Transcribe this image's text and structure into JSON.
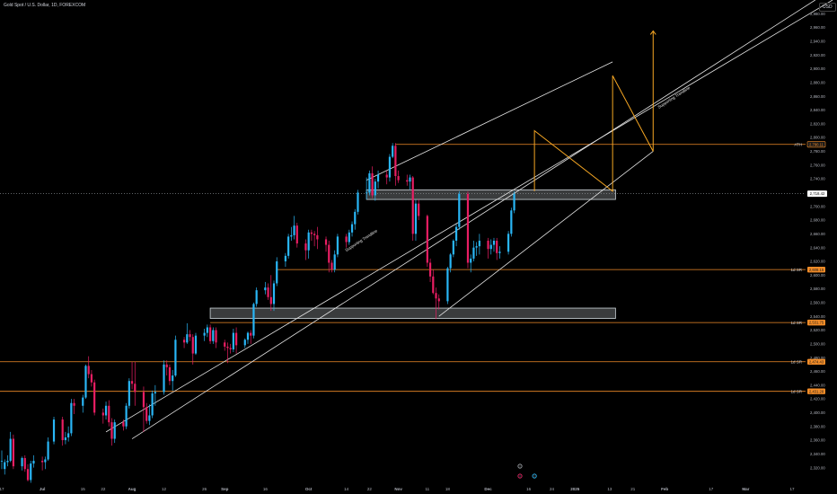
{
  "title": "Gold Spot / U.S. Dollar, 1D, FOREXCOM",
  "currency": "USD",
  "chart_data": {
    "type": "candlestick",
    "ylim": [
      2300,
      3000
    ],
    "y_ticks": [
      2320,
      2340,
      2360,
      2380,
      2400,
      2420,
      2440,
      2460,
      2480,
      2500,
      2520,
      2540,
      2560,
      2580,
      2600,
      2620,
      2640,
      2660,
      2680,
      2700,
      2720,
      2740,
      2760,
      2780,
      2800,
      2820,
      2840,
      2860,
      2880,
      2900,
      2920,
      2940,
      2960,
      2980
    ],
    "x_ticks": [
      {
        "label": "17",
        "date": "2024-06-17"
      },
      {
        "label": "Jul",
        "date": "2024-07-01"
      },
      {
        "label": "15",
        "date": "2024-07-15"
      },
      {
        "label": "22",
        "date": "2024-07-22"
      },
      {
        "label": "Aug",
        "date": "2024-08-01"
      },
      {
        "label": "12",
        "date": "2024-08-12"
      },
      {
        "label": "26",
        "date": "2024-08-26"
      },
      {
        "label": "Sep",
        "date": "2024-09-02"
      },
      {
        "label": "16",
        "date": "2024-09-16"
      },
      {
        "label": "Oct",
        "date": "2024-10-01"
      },
      {
        "label": "14",
        "date": "2024-10-14"
      },
      {
        "label": "22",
        "date": "2024-10-22"
      },
      {
        "label": "Nov",
        "date": "2024-11-01"
      },
      {
        "label": "11",
        "date": "2024-11-11"
      },
      {
        "label": "18",
        "date": "2024-11-18"
      },
      {
        "label": "Dec",
        "date": "2024-12-02"
      },
      {
        "label": "16",
        "date": "2024-12-16"
      },
      {
        "label": "24",
        "date": "2024-12-24"
      },
      {
        "label": "2025",
        "date": "2025-01-01"
      },
      {
        "label": "13",
        "date": "2025-01-13"
      },
      {
        "label": "21",
        "date": "2025-01-21"
      },
      {
        "label": "Feb",
        "date": "2025-02-01"
      },
      {
        "label": "17",
        "date": "2025-02-17"
      },
      {
        "label": "Mar",
        "date": "2025-03-01"
      },
      {
        "label": "17",
        "date": "2025-03-17"
      }
    ],
    "candles": [
      {
        "d": "2024-06-17",
        "o": 2330,
        "h": 2345,
        "l": 2318,
        "c": 2330
      },
      {
        "d": "2024-06-18",
        "o": 2318,
        "h": 2332,
        "l": 2310,
        "c": 2328
      },
      {
        "d": "2024-06-19",
        "o": 2328,
        "h": 2338,
        "l": 2322,
        "c": 2330
      },
      {
        "d": "2024-06-20",
        "o": 2330,
        "h": 2372,
        "l": 2328,
        "c": 2362
      },
      {
        "d": "2024-06-21",
        "o": 2362,
        "h": 2368,
        "l": 2318,
        "c": 2322
      },
      {
        "d": "2024-06-24",
        "o": 2322,
        "h": 2336,
        "l": 2316,
        "c": 2334
      },
      {
        "d": "2024-06-25",
        "o": 2334,
        "h": 2338,
        "l": 2314,
        "c": 2318
      },
      {
        "d": "2024-06-26",
        "o": 2318,
        "h": 2325,
        "l": 2300,
        "c": 2302
      },
      {
        "d": "2024-06-27",
        "o": 2302,
        "h": 2330,
        "l": 2298,
        "c": 2326
      },
      {
        "d": "2024-06-28",
        "o": 2326,
        "h": 2338,
        "l": 2320,
        "c": 2330
      },
      {
        "d": "2024-07-01",
        "o": 2330,
        "h": 2336,
        "l": 2316,
        "c": 2328
      },
      {
        "d": "2024-07-02",
        "o": 2328,
        "h": 2336,
        "l": 2318,
        "c": 2332
      },
      {
        "d": "2024-07-03",
        "o": 2332,
        "h": 2364,
        "l": 2330,
        "c": 2358
      },
      {
        "d": "2024-07-05",
        "o": 2358,
        "h": 2394,
        "l": 2354,
        "c": 2390
      },
      {
        "d": "2024-07-08",
        "o": 2390,
        "h": 2394,
        "l": 2352,
        "c": 2360
      },
      {
        "d": "2024-07-09",
        "o": 2360,
        "h": 2372,
        "l": 2354,
        "c": 2364
      },
      {
        "d": "2024-07-10",
        "o": 2364,
        "h": 2380,
        "l": 2358,
        "c": 2370
      },
      {
        "d": "2024-07-11",
        "o": 2370,
        "h": 2420,
        "l": 2366,
        "c": 2414
      },
      {
        "d": "2024-07-12",
        "o": 2414,
        "h": 2420,
        "l": 2398,
        "c": 2410
      },
      {
        "d": "2024-07-15",
        "o": 2410,
        "h": 2426,
        "l": 2400,
        "c": 2422
      },
      {
        "d": "2024-07-16",
        "o": 2422,
        "h": 2470,
        "l": 2420,
        "c": 2468
      },
      {
        "d": "2024-07-17",
        "o": 2468,
        "h": 2482,
        "l": 2450,
        "c": 2456
      },
      {
        "d": "2024-07-18",
        "o": 2456,
        "h": 2462,
        "l": 2438,
        "c": 2444
      },
      {
        "d": "2024-07-19",
        "o": 2444,
        "h": 2448,
        "l": 2396,
        "c": 2400
      },
      {
        "d": "2024-07-22",
        "o": 2400,
        "h": 2406,
        "l": 2384,
        "c": 2396
      },
      {
        "d": "2024-07-23",
        "o": 2396,
        "h": 2416,
        "l": 2390,
        "c": 2410
      },
      {
        "d": "2024-07-24",
        "o": 2410,
        "h": 2418,
        "l": 2380,
        "c": 2386
      },
      {
        "d": "2024-07-25",
        "o": 2386,
        "h": 2392,
        "l": 2352,
        "c": 2362
      },
      {
        "d": "2024-07-26",
        "o": 2362,
        "h": 2390,
        "l": 2356,
        "c": 2386
      },
      {
        "d": "2024-07-29",
        "o": 2386,
        "h": 2390,
        "l": 2374,
        "c": 2380
      },
      {
        "d": "2024-07-30",
        "o": 2380,
        "h": 2414,
        "l": 2376,
        "c": 2410
      },
      {
        "d": "2024-07-31",
        "o": 2410,
        "h": 2450,
        "l": 2406,
        "c": 2446
      },
      {
        "d": "2024-08-01",
        "o": 2446,
        "h": 2474,
        "l": 2434,
        "c": 2442
      },
      {
        "d": "2024-08-02",
        "o": 2442,
        "h": 2474,
        "l": 2410,
        "c": 2430
      },
      {
        "d": "2024-08-05",
        "o": 2430,
        "h": 2438,
        "l": 2372,
        "c": 2408
      },
      {
        "d": "2024-08-06",
        "o": 2408,
        "h": 2414,
        "l": 2384,
        "c": 2388
      },
      {
        "d": "2024-08-07",
        "o": 2388,
        "h": 2412,
        "l": 2382,
        "c": 2396
      },
      {
        "d": "2024-08-08",
        "o": 2396,
        "h": 2432,
        "l": 2392,
        "c": 2428
      },
      {
        "d": "2024-08-09",
        "o": 2428,
        "h": 2440,
        "l": 2410,
        "c": 2430
      },
      {
        "d": "2024-08-12",
        "o": 2430,
        "h": 2476,
        "l": 2426,
        "c": 2470
      },
      {
        "d": "2024-08-13",
        "o": 2470,
        "h": 2476,
        "l": 2454,
        "c": 2466
      },
      {
        "d": "2024-08-14",
        "o": 2466,
        "h": 2470,
        "l": 2440,
        "c": 2446
      },
      {
        "d": "2024-08-15",
        "o": 2446,
        "h": 2462,
        "l": 2432,
        "c": 2454
      },
      {
        "d": "2024-08-16",
        "o": 2454,
        "h": 2512,
        "l": 2452,
        "c": 2506
      },
      {
        "d": "2024-08-19",
        "o": 2506,
        "h": 2510,
        "l": 2494,
        "c": 2502
      },
      {
        "d": "2024-08-20",
        "o": 2502,
        "h": 2530,
        "l": 2500,
        "c": 2514
      },
      {
        "d": "2024-08-21",
        "o": 2514,
        "h": 2520,
        "l": 2504,
        "c": 2510
      },
      {
        "d": "2024-08-22",
        "o": 2510,
        "h": 2514,
        "l": 2470,
        "c": 2486
      },
      {
        "d": "2024-08-23",
        "o": 2486,
        "h": 2516,
        "l": 2484,
        "c": 2512
      },
      {
        "d": "2024-08-26",
        "o": 2512,
        "h": 2522,
        "l": 2504,
        "c": 2516
      },
      {
        "d": "2024-08-27",
        "o": 2516,
        "h": 2528,
        "l": 2510,
        "c": 2524
      },
      {
        "d": "2024-08-28",
        "o": 2524,
        "h": 2528,
        "l": 2500,
        "c": 2504
      },
      {
        "d": "2024-08-29",
        "o": 2504,
        "h": 2524,
        "l": 2500,
        "c": 2520
      },
      {
        "d": "2024-08-30",
        "o": 2520,
        "h": 2524,
        "l": 2494,
        "c": 2502
      },
      {
        "d": "2024-09-02",
        "o": 2502,
        "h": 2506,
        "l": 2490,
        "c": 2496
      },
      {
        "d": "2024-09-03",
        "o": 2496,
        "h": 2502,
        "l": 2472,
        "c": 2494
      },
      {
        "d": "2024-09-04",
        "o": 2494,
        "h": 2500,
        "l": 2486,
        "c": 2492
      },
      {
        "d": "2024-09-05",
        "o": 2492,
        "h": 2522,
        "l": 2488,
        "c": 2516
      },
      {
        "d": "2024-09-06",
        "o": 2516,
        "h": 2524,
        "l": 2486,
        "c": 2498
      },
      {
        "d": "2024-09-09",
        "o": 2498,
        "h": 2508,
        "l": 2494,
        "c": 2506
      },
      {
        "d": "2024-09-10",
        "o": 2506,
        "h": 2518,
        "l": 2500,
        "c": 2516
      },
      {
        "d": "2024-09-11",
        "o": 2516,
        "h": 2520,
        "l": 2500,
        "c": 2512
      },
      {
        "d": "2024-09-12",
        "o": 2512,
        "h": 2560,
        "l": 2508,
        "c": 2558
      },
      {
        "d": "2024-09-13",
        "o": 2558,
        "h": 2582,
        "l": 2554,
        "c": 2578
      },
      {
        "d": "2024-09-16",
        "o": 2578,
        "h": 2590,
        "l": 2572,
        "c": 2582
      },
      {
        "d": "2024-09-17",
        "o": 2582,
        "h": 2588,
        "l": 2564,
        "c": 2568
      },
      {
        "d": "2024-09-18",
        "o": 2568,
        "h": 2600,
        "l": 2548,
        "c": 2558
      },
      {
        "d": "2024-09-19",
        "o": 2558,
        "h": 2592,
        "l": 2548,
        "c": 2588
      },
      {
        "d": "2024-09-20",
        "o": 2588,
        "h": 2626,
        "l": 2584,
        "c": 2620
      },
      {
        "d": "2024-09-23",
        "o": 2620,
        "h": 2632,
        "l": 2612,
        "c": 2628
      },
      {
        "d": "2024-09-24",
        "o": 2628,
        "h": 2660,
        "l": 2624,
        "c": 2656
      },
      {
        "d": "2024-09-25",
        "o": 2656,
        "h": 2670,
        "l": 2650,
        "c": 2658
      },
      {
        "d": "2024-09-26",
        "o": 2658,
        "h": 2686,
        "l": 2652,
        "c": 2672
      },
      {
        "d": "2024-09-27",
        "o": 2672,
        "h": 2676,
        "l": 2640,
        "c": 2646
      },
      {
        "d": "2024-09-30",
        "o": 2646,
        "h": 2652,
        "l": 2622,
        "c": 2636
      },
      {
        "d": "2024-10-01",
        "o": 2636,
        "h": 2666,
        "l": 2624,
        "c": 2662
      },
      {
        "d": "2024-10-02",
        "o": 2662,
        "h": 2666,
        "l": 2650,
        "c": 2660
      },
      {
        "d": "2024-10-03",
        "o": 2660,
        "h": 2664,
        "l": 2642,
        "c": 2658
      },
      {
        "d": "2024-10-04",
        "o": 2658,
        "h": 2670,
        "l": 2638,
        "c": 2652
      },
      {
        "d": "2024-10-07",
        "o": 2652,
        "h": 2656,
        "l": 2634,
        "c": 2644
      },
      {
        "d": "2024-10-08",
        "o": 2644,
        "h": 2650,
        "l": 2604,
        "c": 2618
      },
      {
        "d": "2024-10-09",
        "o": 2618,
        "h": 2622,
        "l": 2604,
        "c": 2608
      },
      {
        "d": "2024-10-10",
        "o": 2608,
        "h": 2636,
        "l": 2604,
        "c": 2630
      },
      {
        "d": "2024-10-11",
        "o": 2630,
        "h": 2660,
        "l": 2626,
        "c": 2656
      },
      {
        "d": "2024-10-14",
        "o": 2656,
        "h": 2660,
        "l": 2640,
        "c": 2648
      },
      {
        "d": "2024-10-15",
        "o": 2648,
        "h": 2666,
        "l": 2644,
        "c": 2662
      },
      {
        "d": "2024-10-16",
        "o": 2662,
        "h": 2678,
        "l": 2656,
        "c": 2674
      },
      {
        "d": "2024-10-17",
        "o": 2674,
        "h": 2696,
        "l": 2666,
        "c": 2692
      },
      {
        "d": "2024-10-18",
        "o": 2692,
        "h": 2724,
        "l": 2688,
        "c": 2720
      },
      {
        "d": "2024-10-21",
        "o": 2720,
        "h": 2742,
        "l": 2710,
        "c": 2720
      },
      {
        "d": "2024-10-22",
        "o": 2720,
        "h": 2752,
        "l": 2716,
        "c": 2748
      },
      {
        "d": "2024-10-23",
        "o": 2748,
        "h": 2758,
        "l": 2712,
        "c": 2716
      },
      {
        "d": "2024-10-24",
        "o": 2716,
        "h": 2740,
        "l": 2708,
        "c": 2736
      },
      {
        "d": "2024-10-25",
        "o": 2736,
        "h": 2752,
        "l": 2726,
        "c": 2746
      },
      {
        "d": "2024-10-28",
        "o": 2746,
        "h": 2752,
        "l": 2732,
        "c": 2742
      },
      {
        "d": "2024-10-29",
        "o": 2742,
        "h": 2776,
        "l": 2736,
        "c": 2772
      },
      {
        "d": "2024-10-30",
        "o": 2772,
        "h": 2792,
        "l": 2770,
        "c": 2788
      },
      {
        "d": "2024-10-31",
        "o": 2788,
        "h": 2792,
        "l": 2730,
        "c": 2744
      },
      {
        "d": "2024-11-01",
        "o": 2744,
        "h": 2752,
        "l": 2734,
        "c": 2738
      },
      {
        "d": "2024-11-04",
        "o": 2738,
        "h": 2746,
        "l": 2730,
        "c": 2736
      },
      {
        "d": "2024-11-05",
        "o": 2736,
        "h": 2746,
        "l": 2724,
        "c": 2742
      },
      {
        "d": "2024-11-06",
        "o": 2742,
        "h": 2744,
        "l": 2650,
        "c": 2660
      },
      {
        "d": "2024-11-07",
        "o": 2660,
        "h": 2710,
        "l": 2650,
        "c": 2704
      },
      {
        "d": "2024-11-08",
        "o": 2704,
        "h": 2710,
        "l": 2680,
        "c": 2686
      },
      {
        "d": "2024-11-11",
        "o": 2686,
        "h": 2688,
        "l": 2612,
        "c": 2618
      },
      {
        "d": "2024-11-12",
        "o": 2618,
        "h": 2624,
        "l": 2590,
        "c": 2598
      },
      {
        "d": "2024-11-13",
        "o": 2598,
        "h": 2608,
        "l": 2572,
        "c": 2574
      },
      {
        "d": "2024-11-14",
        "o": 2574,
        "h": 2582,
        "l": 2536,
        "c": 2566
      },
      {
        "d": "2024-11-15",
        "o": 2566,
        "h": 2572,
        "l": 2550,
        "c": 2562
      },
      {
        "d": "2024-11-18",
        "o": 2562,
        "h": 2612,
        "l": 2558,
        "c": 2610
      },
      {
        "d": "2024-11-19",
        "o": 2610,
        "h": 2632,
        "l": 2604,
        "c": 2630
      },
      {
        "d": "2024-11-20",
        "o": 2630,
        "h": 2652,
        "l": 2626,
        "c": 2650
      },
      {
        "d": "2024-11-21",
        "o": 2650,
        "h": 2674,
        "l": 2642,
        "c": 2670
      },
      {
        "d": "2024-11-22",
        "o": 2670,
        "h": 2722,
        "l": 2666,
        "c": 2718
      },
      {
        "d": "2024-11-25",
        "o": 2718,
        "h": 2722,
        "l": 2610,
        "c": 2618
      },
      {
        "d": "2024-11-26",
        "o": 2618,
        "h": 2630,
        "l": 2604,
        "c": 2624
      },
      {
        "d": "2024-11-27",
        "o": 2624,
        "h": 2650,
        "l": 2620,
        "c": 2640
      },
      {
        "d": "2024-11-28",
        "o": 2640,
        "h": 2648,
        "l": 2628,
        "c": 2642
      },
      {
        "d": "2024-11-29",
        "o": 2642,
        "h": 2660,
        "l": 2630,
        "c": 2650
      },
      {
        "d": "2024-12-02",
        "o": 2650,
        "h": 2654,
        "l": 2624,
        "c": 2638
      },
      {
        "d": "2024-12-03",
        "o": 2638,
        "h": 2652,
        "l": 2630,
        "c": 2644
      },
      {
        "d": "2024-12-04",
        "o": 2644,
        "h": 2654,
        "l": 2634,
        "c": 2650
      },
      {
        "d": "2024-12-05",
        "o": 2650,
        "h": 2654,
        "l": 2622,
        "c": 2632
      },
      {
        "d": "2024-12-06",
        "o": 2632,
        "h": 2642,
        "l": 2624,
        "c": 2634
      },
      {
        "d": "2024-12-09",
        "o": 2634,
        "h": 2664,
        "l": 2630,
        "c": 2660
      },
      {
        "d": "2024-12-10",
        "o": 2660,
        "h": 2698,
        "l": 2656,
        "c": 2694
      },
      {
        "d": "2024-12-11",
        "o": 2694,
        "h": 2722,
        "l": 2690,
        "c": 2718
      }
    ],
    "horizontal_levels": [
      {
        "label": "ATH",
        "value": 2790.11,
        "price_label": "2,790.11",
        "color": "#f28c28"
      },
      {
        "label": "1d SR",
        "value": 2608,
        "price_label": "2,608.15",
        "color": "#f28c28"
      },
      {
        "label": "1d SR",
        "value": 2531,
        "price_label": "2,531.75",
        "color": "#f28c28"
      },
      {
        "label": "1d SR",
        "value": 2474,
        "price_label": "2,474.43",
        "color": "#f28c28"
      },
      {
        "label": "1d SR",
        "value": 2431,
        "price_label": "2,431.28",
        "color": "#f28c28"
      }
    ],
    "current_price": {
      "value": 2718.42,
      "label": "2,718.42"
    },
    "zones": [
      {
        "from": "2024-10-21",
        "to": "2025-01-15",
        "low": 2710,
        "high": 2724
      },
      {
        "from": "2024-08-28",
        "to": "2025-01-15",
        "low": 2537,
        "high": 2552
      }
    ],
    "trendlines": [
      {
        "label": "",
        "p1": {
          "d": "2024-07-23",
          "v": 2372
        },
        "p2": {
          "d": "2025-03-31",
          "v": 3000
        }
      },
      {
        "label": "Supporting Trendline",
        "p1": {
          "d": "2024-08-01",
          "v": 2362
        },
        "p2": {
          "d": "2025-03-25",
          "v": 3000
        }
      },
      {
        "label": "Supporting Trendline",
        "p1": {
          "d": "2024-11-15",
          "v": 2540
        },
        "p2": {
          "d": "2025-01-28",
          "v": 2780
        }
      },
      {
        "label": "",
        "p1": {
          "d": "2024-10-21",
          "v": 2738
        },
        "p2": {
          "d": "2025-01-14",
          "v": 2910
        }
      }
    ],
    "projection_path": [
      {
        "d": "2024-12-18",
        "v": 2722
      },
      {
        "d": "2024-12-18",
        "v": 2810
      },
      {
        "d": "2025-01-14",
        "v": 2722
      },
      {
        "d": "2025-01-14",
        "v": 2890
      },
      {
        "d": "2025-01-28",
        "v": 2780
      },
      {
        "d": "2025-01-28",
        "v": 2955
      }
    ],
    "colors": {
      "up": "#29b6f6",
      "down": "#e91e63",
      "level": "#f28c28",
      "zone": "#cfd8dc",
      "trend": "#e6e6e6",
      "projection": "#f5a623"
    }
  }
}
